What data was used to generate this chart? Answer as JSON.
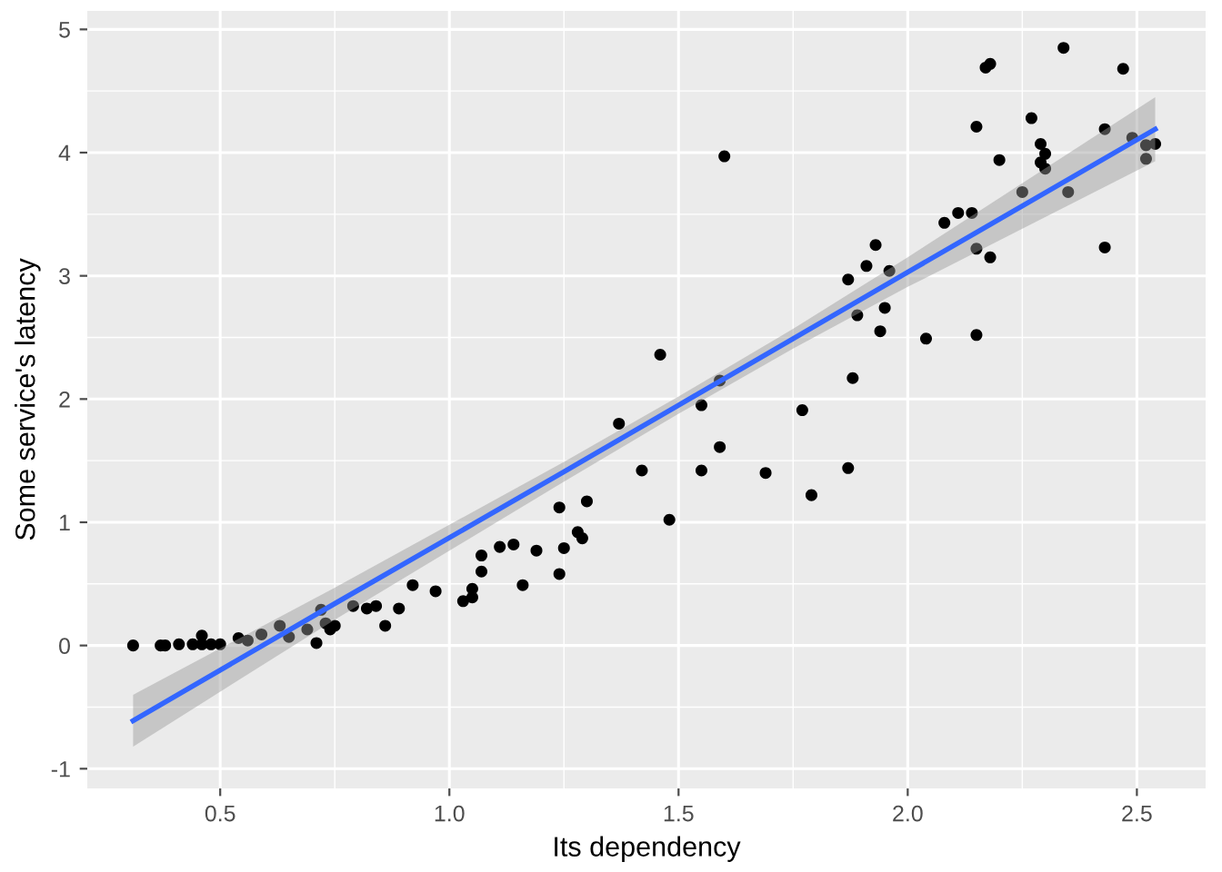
{
  "chart_data": {
    "type": "scatter",
    "xlabel": "Its dependency",
    "ylabel": "Some service's latency",
    "xlim": [
      0.21,
      2.65
    ],
    "ylim": [
      -1.16,
      5.15
    ],
    "xticks": [
      0.5,
      {
        "value": 1.0,
        "label": "1.0"
      },
      1.5,
      {
        "value": 2.0,
        "label": "2.0"
      },
      2.5
    ],
    "yticks": [
      -1,
      0,
      1,
      2,
      3,
      4,
      5
    ],
    "grid": true,
    "series": [
      {
        "color": "#000000",
        "marker": "circle",
        "x": [
          0.31,
          0.37,
          0.38,
          0.41,
          0.44,
          0.46,
          0.46,
          0.48,
          0.5,
          0.54,
          0.56,
          0.59,
          0.63,
          0.65,
          0.69,
          0.71,
          0.72,
          0.73,
          0.74,
          0.75,
          0.79,
          0.82,
          0.84,
          0.86,
          0.89,
          0.92,
          0.97,
          1.03,
          1.05,
          1.05,
          1.07,
          1.07,
          1.11,
          1.14,
          1.19,
          1.16,
          1.24,
          1.25,
          1.24,
          1.28,
          1.29,
          1.3,
          1.37,
          1.42,
          1.46,
          1.48,
          1.55,
          1.55,
          1.59,
          1.59,
          1.6,
          1.69,
          1.77,
          1.79,
          1.87,
          1.88,
          1.94,
          1.87,
          1.91,
          1.93,
          1.89,
          1.95,
          1.96,
          2.04,
          2.08,
          2.11,
          2.14,
          2.15,
          2.18,
          2.15,
          2.15,
          2.17,
          2.18,
          2.2,
          2.25,
          2.27,
          2.29,
          2.3,
          2.29,
          2.3,
          2.34,
          2.35,
          2.43,
          2.43,
          2.47,
          2.49,
          2.52,
          2.52,
          2.54
        ],
        "values": [
          0.0,
          0.0,
          0.0,
          0.01,
          0.01,
          0.01,
          0.08,
          0.01,
          0.01,
          0.06,
          0.04,
          0.09,
          0.16,
          0.07,
          0.13,
          0.02,
          0.29,
          0.18,
          0.13,
          0.16,
          0.32,
          0.3,
          0.32,
          0.16,
          0.3,
          0.49,
          0.44,
          0.36,
          0.46,
          0.39,
          0.6,
          0.73,
          0.8,
          0.82,
          0.77,
          0.49,
          0.58,
          0.79,
          1.12,
          0.92,
          0.87,
          1.17,
          1.8,
          1.42,
          2.36,
          1.02,
          1.95,
          1.42,
          1.61,
          2.15,
          3.97,
          1.4,
          1.91,
          1.22,
          1.44,
          2.17,
          2.55,
          2.97,
          3.08,
          3.25,
          2.68,
          2.74,
          3.04,
          2.49,
          3.43,
          3.51,
          3.51,
          3.22,
          3.15,
          2.52,
          4.21,
          4.69,
          4.72,
          3.94,
          3.68,
          4.28,
          4.07,
          3.99,
          3.92,
          3.87,
          4.85,
          3.68,
          3.23,
          4.19,
          4.68,
          4.12,
          4.06,
          3.95,
          4.07
        ]
      },
      {
        "type": "line",
        "color": "#3366ff",
        "marker": "none",
        "x": [
          0.31,
          0.75,
          1.25,
          1.5,
          1.75,
          2.0,
          2.54
        ],
        "values": [
          -0.61,
          0.34,
          1.41,
          1.95,
          2.49,
          3.03,
          4.19
        ],
        "lower": [
          -0.82,
          0.21,
          1.33,
          1.88,
          2.41,
          2.91,
          3.93
        ],
        "upper": [
          -0.4,
          0.47,
          1.49,
          2.02,
          2.57,
          3.15,
          4.45
        ]
      }
    ]
  }
}
